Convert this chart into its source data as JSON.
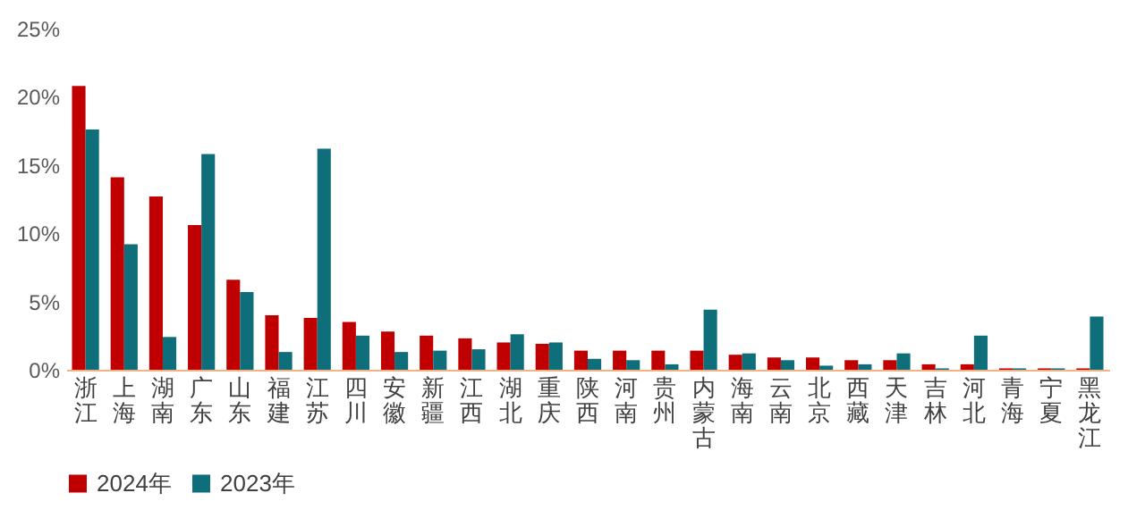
{
  "chart_data": {
    "type": "bar",
    "categories": [
      "浙江",
      "上海",
      "湖南",
      "广东",
      "山东",
      "福建",
      "江苏",
      "四川",
      "安徽",
      "新疆",
      "江西",
      "湖北",
      "重庆",
      "陕西",
      "河南",
      "贵州",
      "内蒙古",
      "海南",
      "云南",
      "北京",
      "西藏",
      "天津",
      "吉林",
      "河北",
      "青海",
      "宁夏",
      "黑龙江"
    ],
    "series": [
      {
        "name": "2024年",
        "color": "#c00000",
        "values": [
          20.8,
          14.1,
          12.7,
          10.6,
          6.6,
          4.0,
          3.8,
          3.5,
          2.8,
          2.5,
          2.3,
          2.0,
          1.9,
          1.4,
          1.4,
          1.4,
          1.4,
          1.1,
          0.9,
          0.9,
          0.7,
          0.7,
          0.4,
          0.4,
          0.1,
          0.1,
          0.1
        ]
      },
      {
        "name": "2023年",
        "color": "#0e6e7a",
        "values": [
          17.6,
          9.2,
          2.4,
          15.8,
          5.7,
          1.3,
          16.2,
          2.5,
          1.3,
          1.4,
          1.5,
          2.6,
          2.0,
          0.8,
          0.7,
          0.4,
          4.4,
          1.2,
          0.7,
          0.3,
          0.4,
          1.2,
          0.1,
          2.5,
          0.1,
          0.1,
          3.9
        ]
      }
    ],
    "ylim": [
      0,
      25
    ],
    "yticks": [
      {
        "value": 0,
        "label": "0%"
      },
      {
        "value": 5,
        "label": "5%"
      },
      {
        "value": 10,
        "label": "10%"
      },
      {
        "value": 15,
        "label": "15%"
      },
      {
        "value": 20,
        "label": "20%"
      },
      {
        "value": 25,
        "label": "25%"
      }
    ],
    "grid": false,
    "legend": "bottom"
  }
}
